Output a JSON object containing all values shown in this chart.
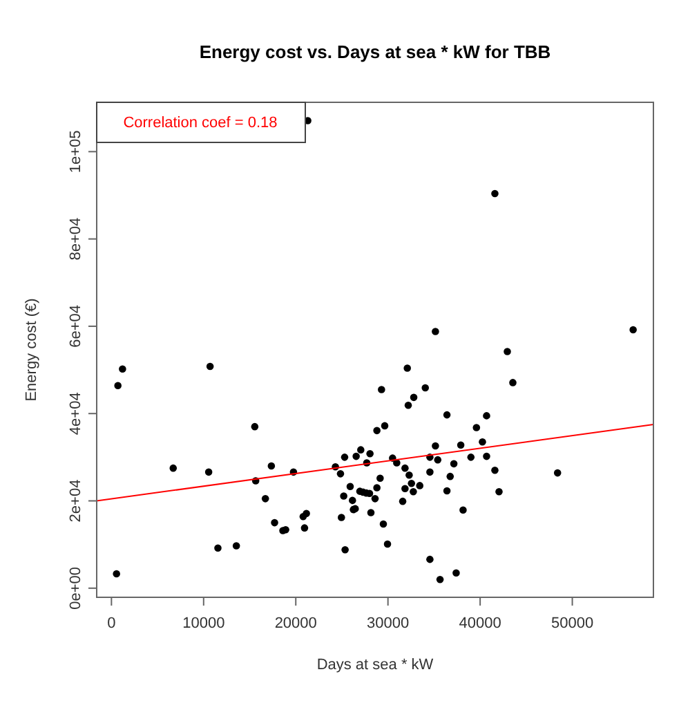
{
  "chart_data": {
    "type": "scatter",
    "title": "Energy cost vs. Days at sea * kW for TBB",
    "xlabel": "Days at sea * kW",
    "ylabel": "Energy cost (€)",
    "annotations": [
      "Correlation coef =  0.18"
    ],
    "xlim": [
      -1600,
      58800
    ],
    "ylim": [
      -2090,
      111300
    ],
    "xticks": [
      0,
      10000,
      20000,
      30000,
      40000,
      50000
    ],
    "yticks": [
      {
        "value": 0,
        "label": "0e+00"
      },
      {
        "value": 20000,
        "label": "2e+04"
      },
      {
        "value": 40000,
        "label": "4e+04"
      },
      {
        "value": 60000,
        "label": "6e+04"
      },
      {
        "value": 80000,
        "label": "8e+04"
      },
      {
        "value": 100000,
        "label": "1e+05"
      }
    ],
    "grid": false,
    "marker": "circle",
    "series": [
      {
        "color": "#000000",
        "x": [
          21300,
          1200,
          700,
          10700,
          41600,
          35150,
          56600,
          42950,
          32100,
          43550,
          550,
          6700,
          10550,
          15550,
          15650,
          16700,
          17350,
          17700,
          18600,
          18900,
          19750,
          20800,
          21150,
          20950,
          11550,
          13550,
          24300,
          24850,
          25300,
          26550,
          27050,
          28050,
          27700,
          25200,
          25900,
          26150,
          26950,
          27300,
          27650,
          28000,
          26250,
          26450,
          24950,
          28150,
          25350,
          28600,
          28800,
          29150,
          28800,
          29300,
          29650,
          29500,
          34050,
          32200,
          32800,
          36400,
          40700,
          39600,
          30500,
          30950,
          31850,
          32300,
          32550,
          33450,
          31850,
          32750,
          31600,
          29950,
          35150,
          34550,
          35400,
          34550,
          37150,
          37900,
          36750,
          36400,
          39000,
          40250,
          40700,
          41600,
          42050,
          38150,
          48400,
          34550,
          35650,
          37400
        ],
        "values": [
          107100,
          50200,
          46400,
          50800,
          90400,
          58800,
          59200,
          54200,
          50400,
          47100,
          3300,
          27500,
          26600,
          37000,
          24600,
          20500,
          28000,
          15000,
          13200,
          13400,
          26600,
          16400,
          17100,
          13800,
          9200,
          9700,
          27800,
          26200,
          30000,
          30200,
          31700,
          30800,
          28700,
          21100,
          23300,
          20100,
          22200,
          22000,
          21800,
          21700,
          18000,
          18200,
          16200,
          17300,
          8800,
          20500,
          23000,
          25200,
          36100,
          45500,
          37200,
          14700,
          45900,
          41900,
          43700,
          39700,
          39500,
          36800,
          29800,
          28700,
          27500,
          25900,
          24000,
          23500,
          22800,
          22100,
          19900,
          10100,
          32600,
          30000,
          29400,
          26600,
          28500,
          32800,
          25600,
          22300,
          30000,
          33500,
          30200,
          27000,
          22100,
          17900,
          26400,
          6600,
          2000,
          3500
        ]
      },
      {
        "type": "line",
        "color": "#ff0000",
        "marker": "none",
        "line_style": "solid",
        "x": [
          -1600,
          58800
        ],
        "values": [
          20000,
          37500
        ]
      }
    ]
  }
}
